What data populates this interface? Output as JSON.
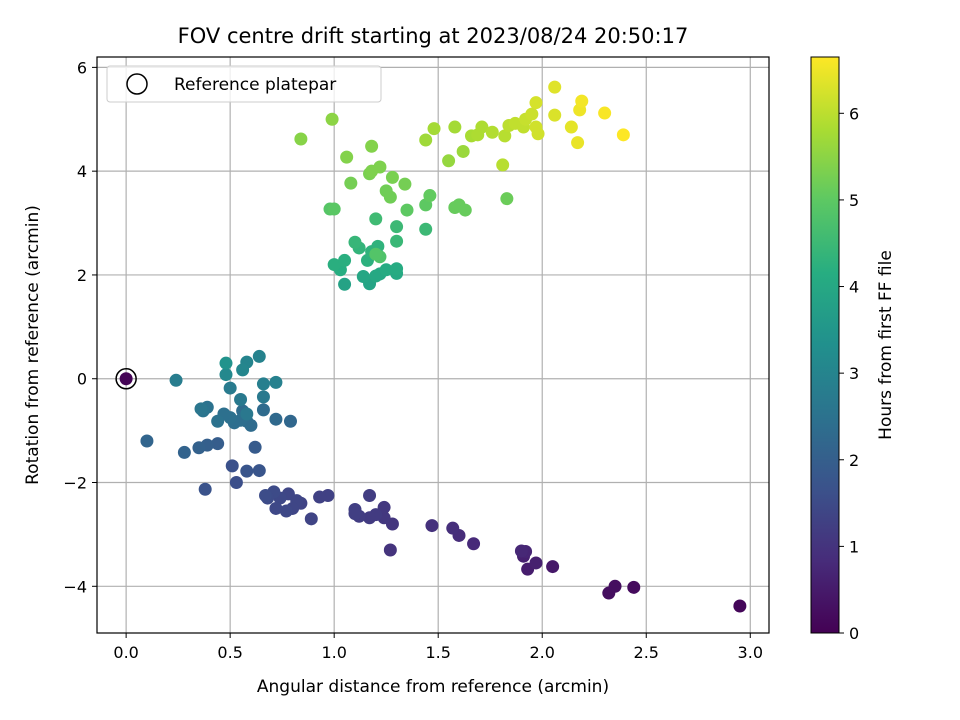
{
  "chart_data": {
    "type": "scatter",
    "title": "FOV centre drift starting at 2023/08/24 20:50:17",
    "xlabel": "Angular distance from reference (arcmin)",
    "ylabel": "Rotation from reference (arcmin)",
    "xlim": [
      -0.14,
      3.09
    ],
    "ylim": [
      -4.9,
      6.2
    ],
    "x_ticks": [
      0.0,
      0.5,
      1.0,
      1.5,
      2.0,
      2.5,
      3.0
    ],
    "x_tick_labels": [
      "0.0",
      "0.5",
      "1.0",
      "1.5",
      "2.0",
      "2.5",
      "3.0"
    ],
    "y_ticks": [
      -4,
      -2,
      0,
      2,
      4,
      6
    ],
    "y_tick_labels": [
      "−4",
      "−2",
      "0",
      "2",
      "4",
      "6"
    ],
    "grid": true,
    "legend": {
      "location": "top-left",
      "entries": [
        "Reference platepar"
      ]
    },
    "reference_point": {
      "x": 0.0,
      "y": 0.0,
      "label": "Reference platepar"
    },
    "colorbar": {
      "label": "Hours from first FF file",
      "range": [
        0,
        6.65
      ],
      "ticks": [
        0,
        1,
        2,
        3,
        4,
        5,
        6
      ],
      "tick_labels": [
        "0",
        "1",
        "2",
        "3",
        "4",
        "5",
        "6"
      ],
      "colormap": "viridis"
    },
    "points": [
      {
        "x": 0.0,
        "y": 0.0,
        "h": 0.05
      },
      {
        "x": 2.95,
        "y": -4.38,
        "h": 0.1
      },
      {
        "x": 2.44,
        "y": -4.02,
        "h": 0.2
      },
      {
        "x": 2.35,
        "y": -4.0,
        "h": 0.25
      },
      {
        "x": 2.32,
        "y": -4.13,
        "h": 0.25
      },
      {
        "x": 2.05,
        "y": -3.62,
        "h": 0.45
      },
      {
        "x": 1.93,
        "y": -3.67,
        "h": 0.55
      },
      {
        "x": 1.97,
        "y": -3.55,
        "h": 0.6
      },
      {
        "x": 1.91,
        "y": -3.42,
        "h": 0.6
      },
      {
        "x": 1.92,
        "y": -3.33,
        "h": 0.7
      },
      {
        "x": 1.9,
        "y": -3.32,
        "h": 0.75
      },
      {
        "x": 1.67,
        "y": -3.18,
        "h": 0.8
      },
      {
        "x": 1.6,
        "y": -3.02,
        "h": 0.85
      },
      {
        "x": 1.57,
        "y": -2.88,
        "h": 0.9
      },
      {
        "x": 1.47,
        "y": -2.83,
        "h": 0.95
      },
      {
        "x": 1.27,
        "y": -3.3,
        "h": 1.0
      },
      {
        "x": 1.28,
        "y": -2.8,
        "h": 1.05
      },
      {
        "x": 1.24,
        "y": -2.68,
        "h": 1.1
      },
      {
        "x": 1.24,
        "y": -2.48,
        "h": 1.1
      },
      {
        "x": 1.2,
        "y": -2.62,
        "h": 1.15
      },
      {
        "x": 1.17,
        "y": -2.68,
        "h": 1.15
      },
      {
        "x": 1.17,
        "y": -2.25,
        "h": 1.2
      },
      {
        "x": 1.12,
        "y": -2.65,
        "h": 1.2
      },
      {
        "x": 1.1,
        "y": -2.52,
        "h": 1.25
      },
      {
        "x": 1.1,
        "y": -2.6,
        "h": 1.25
      },
      {
        "x": 0.97,
        "y": -2.25,
        "h": 1.3
      },
      {
        "x": 0.93,
        "y": -2.28,
        "h": 1.3
      },
      {
        "x": 0.89,
        "y": -2.7,
        "h": 1.35
      },
      {
        "x": 0.84,
        "y": -2.4,
        "h": 1.35
      },
      {
        "x": 0.82,
        "y": -2.35,
        "h": 1.4
      },
      {
        "x": 0.8,
        "y": -2.5,
        "h": 1.4
      },
      {
        "x": 0.78,
        "y": -2.22,
        "h": 1.4
      },
      {
        "x": 0.77,
        "y": -2.55,
        "h": 1.45
      },
      {
        "x": 0.74,
        "y": -2.3,
        "h": 1.45
      },
      {
        "x": 0.72,
        "y": -2.5,
        "h": 1.45
      },
      {
        "x": 0.71,
        "y": -2.18,
        "h": 1.5
      },
      {
        "x": 0.68,
        "y": -2.3,
        "h": 1.5
      },
      {
        "x": 0.67,
        "y": -2.25,
        "h": 1.55
      },
      {
        "x": 0.53,
        "y": -2.0,
        "h": 1.6
      },
      {
        "x": 0.51,
        "y": -1.68,
        "h": 1.65
      },
      {
        "x": 0.38,
        "y": -2.13,
        "h": 1.7
      },
      {
        "x": 0.58,
        "y": -1.78,
        "h": 1.75
      },
      {
        "x": 0.64,
        "y": -1.77,
        "h": 1.75
      },
      {
        "x": 0.62,
        "y": -1.32,
        "h": 1.9
      },
      {
        "x": 0.44,
        "y": -1.25,
        "h": 1.95
      },
      {
        "x": 0.39,
        "y": -1.28,
        "h": 2.0
      },
      {
        "x": 0.35,
        "y": -1.33,
        "h": 2.05
      },
      {
        "x": 0.28,
        "y": -1.42,
        "h": 2.1
      },
      {
        "x": 0.1,
        "y": -1.2,
        "h": 2.15
      },
      {
        "x": 0.79,
        "y": -0.82,
        "h": 2.2
      },
      {
        "x": 0.72,
        "y": -0.78,
        "h": 2.25
      },
      {
        "x": 0.66,
        "y": -0.6,
        "h": 2.3
      },
      {
        "x": 0.6,
        "y": -0.9,
        "h": 2.3
      },
      {
        "x": 0.58,
        "y": -0.82,
        "h": 2.35
      },
      {
        "x": 0.56,
        "y": -0.62,
        "h": 2.35
      },
      {
        "x": 0.55,
        "y": -0.8,
        "h": 2.4
      },
      {
        "x": 0.52,
        "y": -0.85,
        "h": 2.4
      },
      {
        "x": 0.5,
        "y": -0.75,
        "h": 2.45
      },
      {
        "x": 0.47,
        "y": -0.68,
        "h": 2.45
      },
      {
        "x": 0.44,
        "y": -0.82,
        "h": 2.5
      },
      {
        "x": 0.39,
        "y": -0.55,
        "h": 2.5
      },
      {
        "x": 0.37,
        "y": -0.62,
        "h": 2.55
      },
      {
        "x": 0.36,
        "y": -0.58,
        "h": 2.6
      },
      {
        "x": 0.58,
        "y": -0.68,
        "h": 2.65
      },
      {
        "x": 0.55,
        "y": -0.4,
        "h": 2.7
      },
      {
        "x": 0.66,
        "y": -0.35,
        "h": 2.7
      },
      {
        "x": 0.5,
        "y": -0.18,
        "h": 2.75
      },
      {
        "x": 0.24,
        "y": -0.03,
        "h": 2.8
      },
      {
        "x": 0.66,
        "y": -0.1,
        "h": 2.85
      },
      {
        "x": 0.72,
        "y": -0.07,
        "h": 2.9
      },
      {
        "x": 0.64,
        "y": 0.43,
        "h": 2.95
      },
      {
        "x": 0.58,
        "y": 0.32,
        "h": 3.0
      },
      {
        "x": 0.56,
        "y": 0.17,
        "h": 3.05
      },
      {
        "x": 0.48,
        "y": 0.08,
        "h": 3.1
      },
      {
        "x": 0.48,
        "y": 0.3,
        "h": 3.4
      },
      {
        "x": 1.05,
        "y": 1.82,
        "h": 3.85
      },
      {
        "x": 1.17,
        "y": 1.83,
        "h": 3.9
      },
      {
        "x": 1.14,
        "y": 1.97,
        "h": 3.95
      },
      {
        "x": 1.2,
        "y": 1.98,
        "h": 4.0
      },
      {
        "x": 1.22,
        "y": 2.02,
        "h": 4.0
      },
      {
        "x": 1.3,
        "y": 2.03,
        "h": 4.05
      },
      {
        "x": 1.25,
        "y": 2.1,
        "h": 4.1
      },
      {
        "x": 1.3,
        "y": 2.12,
        "h": 4.1
      },
      {
        "x": 1.03,
        "y": 2.1,
        "h": 4.15
      },
      {
        "x": 1.0,
        "y": 2.2,
        "h": 4.2
      },
      {
        "x": 1.05,
        "y": 2.28,
        "h": 4.2
      },
      {
        "x": 1.16,
        "y": 2.28,
        "h": 4.25
      },
      {
        "x": 1.18,
        "y": 2.45,
        "h": 4.3
      },
      {
        "x": 1.21,
        "y": 2.55,
        "h": 4.3
      },
      {
        "x": 1.12,
        "y": 2.52,
        "h": 4.35
      },
      {
        "x": 1.1,
        "y": 2.63,
        "h": 4.4
      },
      {
        "x": 1.3,
        "y": 2.65,
        "h": 4.45
      },
      {
        "x": 1.44,
        "y": 2.88,
        "h": 4.5
      },
      {
        "x": 1.3,
        "y": 2.93,
        "h": 4.5
      },
      {
        "x": 1.2,
        "y": 3.08,
        "h": 4.55
      },
      {
        "x": 1.22,
        "y": 2.35,
        "h": 4.8
      },
      {
        "x": 1.2,
        "y": 2.4,
        "h": 4.85
      },
      {
        "x": 0.98,
        "y": 3.27,
        "h": 4.9
      },
      {
        "x": 1.0,
        "y": 3.27,
        "h": 4.95
      },
      {
        "x": 1.35,
        "y": 3.25,
        "h": 5.0
      },
      {
        "x": 1.44,
        "y": 3.35,
        "h": 5.0
      },
      {
        "x": 1.46,
        "y": 3.53,
        "h": 5.05
      },
      {
        "x": 1.58,
        "y": 3.3,
        "h": 5.1
      },
      {
        "x": 1.6,
        "y": 3.35,
        "h": 5.1
      },
      {
        "x": 1.63,
        "y": 3.25,
        "h": 5.1
      },
      {
        "x": 1.83,
        "y": 3.47,
        "h": 5.15
      },
      {
        "x": 1.27,
        "y": 3.5,
        "h": 5.2
      },
      {
        "x": 1.25,
        "y": 3.62,
        "h": 5.2
      },
      {
        "x": 1.34,
        "y": 3.75,
        "h": 5.25
      },
      {
        "x": 1.08,
        "y": 3.77,
        "h": 5.25
      },
      {
        "x": 1.28,
        "y": 3.88,
        "h": 5.3
      },
      {
        "x": 1.17,
        "y": 3.95,
        "h": 5.3
      },
      {
        "x": 1.18,
        "y": 4.0,
        "h": 5.35
      },
      {
        "x": 1.22,
        "y": 4.08,
        "h": 5.35
      },
      {
        "x": 1.06,
        "y": 4.27,
        "h": 5.4
      },
      {
        "x": 1.18,
        "y": 4.48,
        "h": 5.4
      },
      {
        "x": 0.84,
        "y": 4.62,
        "h": 5.45
      },
      {
        "x": 0.99,
        "y": 5.0,
        "h": 5.5
      },
      {
        "x": 1.55,
        "y": 4.2,
        "h": 5.6
      },
      {
        "x": 1.62,
        "y": 4.38,
        "h": 5.65
      },
      {
        "x": 1.44,
        "y": 4.6,
        "h": 5.7
      },
      {
        "x": 1.48,
        "y": 4.82,
        "h": 5.75
      },
      {
        "x": 1.58,
        "y": 4.85,
        "h": 5.75
      },
      {
        "x": 1.66,
        "y": 4.68,
        "h": 5.8
      },
      {
        "x": 1.69,
        "y": 4.7,
        "h": 5.85
      },
      {
        "x": 1.71,
        "y": 4.85,
        "h": 5.85
      },
      {
        "x": 1.76,
        "y": 4.75,
        "h": 5.9
      },
      {
        "x": 1.81,
        "y": 4.12,
        "h": 5.95
      },
      {
        "x": 1.82,
        "y": 4.68,
        "h": 5.95
      },
      {
        "x": 1.84,
        "y": 4.88,
        "h": 6.0
      },
      {
        "x": 1.87,
        "y": 4.92,
        "h": 6.05
      },
      {
        "x": 1.91,
        "y": 4.85,
        "h": 6.05
      },
      {
        "x": 1.92,
        "y": 5.0,
        "h": 6.1
      },
      {
        "x": 1.95,
        "y": 5.1,
        "h": 6.15
      },
      {
        "x": 1.97,
        "y": 4.85,
        "h": 6.2
      },
      {
        "x": 1.98,
        "y": 4.72,
        "h": 6.2
      },
      {
        "x": 1.97,
        "y": 5.32,
        "h": 6.25
      },
      {
        "x": 2.06,
        "y": 5.08,
        "h": 6.3
      },
      {
        "x": 2.06,
        "y": 5.62,
        "h": 6.35
      },
      {
        "x": 2.14,
        "y": 4.85,
        "h": 6.4
      },
      {
        "x": 2.17,
        "y": 4.55,
        "h": 6.45
      },
      {
        "x": 2.18,
        "y": 5.18,
        "h": 6.5
      },
      {
        "x": 2.19,
        "y": 5.35,
        "h": 6.55
      },
      {
        "x": 2.3,
        "y": 5.12,
        "h": 6.6
      },
      {
        "x": 2.39,
        "y": 4.7,
        "h": 6.65
      }
    ]
  }
}
